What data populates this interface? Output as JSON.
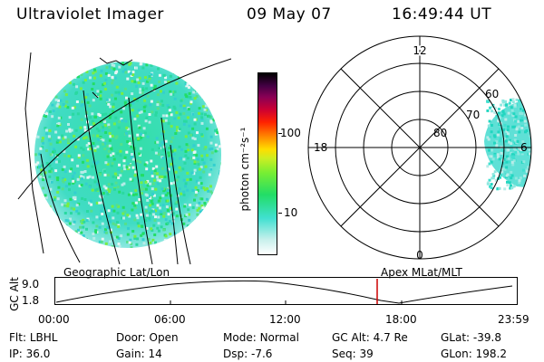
{
  "header": {
    "instrument": "Ultraviolet Imager",
    "date": "09 May 07",
    "time": "16:49:44 UT"
  },
  "colors": {
    "background": "#ffffff",
    "foreground": "#000000",
    "marker": "#cc0000"
  },
  "colorbar": {
    "unit_label": "photon cm⁻²s⁻¹",
    "ticks": [
      "100",
      "10"
    ]
  },
  "polar_plot": {
    "mlt_labels": [
      "12",
      "18",
      "6",
      "0"
    ],
    "lat_labels": [
      "60",
      "70",
      "80"
    ]
  },
  "timeline": {
    "left_label": "Geographic Lat/Lon",
    "right_label": "Apex MLat/MLT",
    "axis_label": "GC Alt",
    "y_ticks": [
      "9.0",
      "1.8"
    ],
    "x_ticks": [
      "00:00",
      "06:00",
      "12:00",
      "18:00",
      "23:59"
    ]
  },
  "info": {
    "row1": [
      {
        "label": "Flt:",
        "value": "LBHL"
      },
      {
        "label": "Door:",
        "value": "Open"
      },
      {
        "label": "Mode:",
        "value": "Normal"
      },
      {
        "label": "GC Alt:",
        "value": "4.7 Re"
      },
      {
        "label": "GLat:",
        "value": "-39.8"
      }
    ],
    "row2": [
      {
        "label": "IP:",
        "value": "36.0"
      },
      {
        "label": "Gain:",
        "value": "14"
      },
      {
        "label": "Dsp:",
        "value": "-7.6"
      },
      {
        "label": "Seq:",
        "value": "39"
      },
      {
        "label": "GLon:",
        "value": "198.2"
      }
    ]
  }
}
